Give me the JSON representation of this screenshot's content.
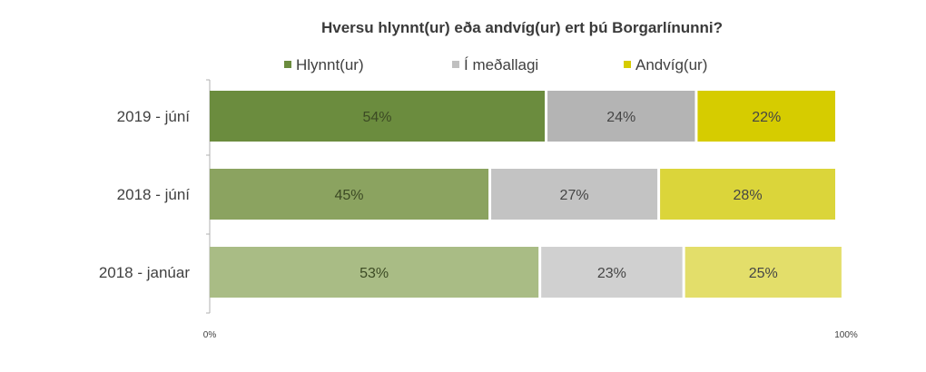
{
  "chart_data": {
    "type": "bar",
    "orientation": "horizontal",
    "stacked": true,
    "title": "Hversu hlynnt(ur) eða andvíg(ur) ert þú Borgarlínunni?",
    "categories": [
      "2019 - júní",
      "2018 - júní",
      "2018 - janúar"
    ],
    "series": [
      {
        "name": "Hlynnt(ur)",
        "values": [
          54,
          45,
          53
        ],
        "labels": [
          "54%",
          "45%",
          "53%"
        ],
        "colors": [
          "#6b8c3e",
          "#8ba360",
          "#a9bc85"
        ],
        "legend_color": "#6b8c3e",
        "label_color": "#3c4a24"
      },
      {
        "name": "Í meðallagi",
        "values": [
          24,
          27,
          23
        ],
        "labels": [
          "24%",
          "27%",
          "23%"
        ],
        "colors": [
          "#b4b4b4",
          "#c3c3c3",
          "#d0d0d0"
        ],
        "legend_color": "#c0c0c0",
        "label_color": "#454545"
      },
      {
        "name": "Andvíg(ur)",
        "values": [
          22,
          28,
          25
        ],
        "labels": [
          "22%",
          "28%",
          "25%"
        ],
        "colors": [
          "#d6cc00",
          "#dbd53a",
          "#e3de6a"
        ],
        "legend_color": "#d6cc00",
        "label_color": "#454545"
      }
    ],
    "xlim": [
      0,
      100
    ],
    "x_ticks": [
      "0%",
      "100%"
    ],
    "legend_position": "top",
    "grid": false
  }
}
